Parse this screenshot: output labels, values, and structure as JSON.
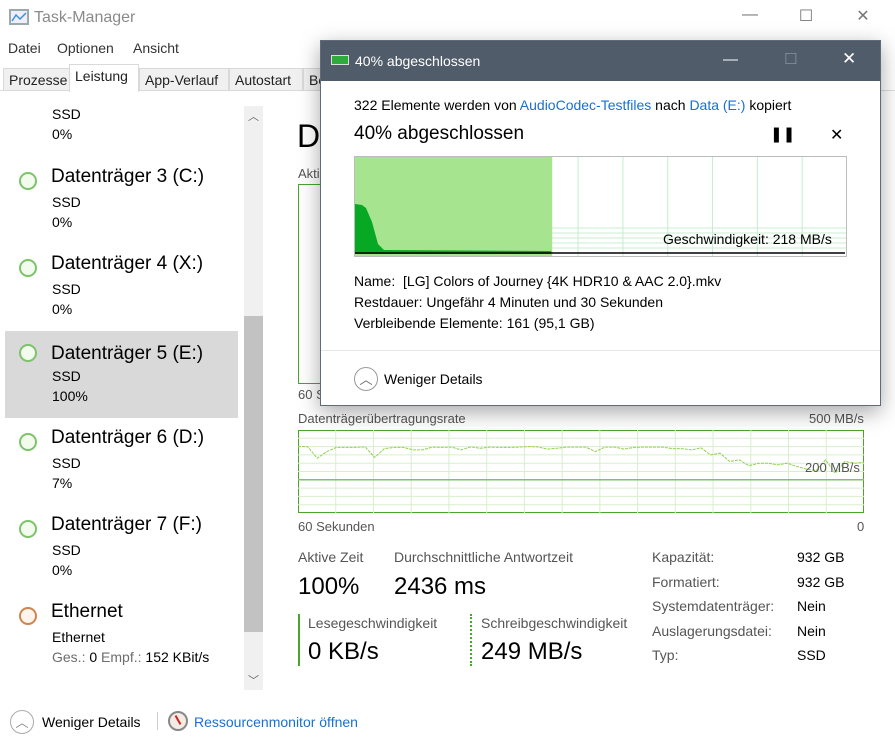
{
  "window": {
    "title": "Task-Manager",
    "app_icon": "task-manager-icon",
    "controls": [
      "minimize",
      "maximize",
      "close"
    ]
  },
  "menu": [
    "Datei",
    "Optionen",
    "Ansicht"
  ],
  "tabs": [
    {
      "label": "Prozesse"
    },
    {
      "label": "Leistung",
      "active": true
    },
    {
      "label": "App-Verlauf"
    },
    {
      "label": "Autostart"
    },
    {
      "label": "Be"
    }
  ],
  "sidebar": {
    "partial_top": {
      "sub": "SSD",
      "value": "0%"
    },
    "items": [
      {
        "title": "Datenträger 3 (C:)",
        "sub": "SSD",
        "value": "0%"
      },
      {
        "title": "Datenträger 4 (X:)",
        "sub": "SSD",
        "value": "0%"
      },
      {
        "title": "Datenträger 5 (E:)",
        "sub": "SSD",
        "value": "100%",
        "selected": true
      },
      {
        "title": "Datenträger 6 (D:)",
        "sub": "SSD",
        "value": "7%"
      },
      {
        "title": "Datenträger 7 (F:)",
        "sub": "SSD",
        "value": "0%"
      }
    ],
    "ethernet": {
      "title": "Ethernet",
      "sub": "Ethernet",
      "send_label": "Ges.:",
      "send": "0",
      "recv_label": "Empf.:",
      "recv": "152 KBit/s"
    }
  },
  "main": {
    "heading_partial": "D",
    "graph1_label_partial": "Akti",
    "graph1_axis_partial": "60 S",
    "transfer": {
      "label": "Datenträgerübertragungsrate",
      "max": "500 MB/s",
      "ref_label": "200 MB/s",
      "x_left": "60 Sekunden",
      "x_right": "0",
      "max_value": 500,
      "ref_value": 200,
      "values": [
        400,
        400,
        330,
        370,
        395,
        395,
        395,
        398,
        335,
        388,
        395,
        395,
        380,
        380,
        397,
        395,
        397,
        380,
        398,
        390,
        397,
        395,
        395,
        397,
        400,
        398,
        385,
        390,
        397,
        397,
        397,
        370,
        397,
        397,
        385,
        395,
        397,
        397,
        397,
        388,
        388,
        380,
        392,
        350,
        360,
        310,
        320,
        285,
        300,
        300,
        290,
        300,
        280,
        265,
        255,
        320,
        240,
        310,
        300,
        305
      ]
    },
    "stats": {
      "active_label": "Aktive Zeit",
      "active": "100%",
      "resp_label": "Durchschnittliche Antwortzeit",
      "resp": "2436 ms",
      "read_label": "Lesegeschwindigkeit",
      "read": "0 KB/s",
      "write_label": "Schreibgeschwindigkeit",
      "write": "249 MB/s"
    },
    "props": [
      {
        "k": "Kapazität:",
        "v": "932 GB"
      },
      {
        "k": "Formatiert:",
        "v": "932 GB"
      },
      {
        "k": "Systemdatenträger:",
        "v": "Nein"
      },
      {
        "k": "Auslagerungsdatei:",
        "v": "Nein"
      },
      {
        "k": "Typ:",
        "v": "SSD"
      }
    ]
  },
  "footer": {
    "less_details": "Weniger Details",
    "resmon": "Ressourcenmonitor öffnen"
  },
  "dialog": {
    "title": "40% abgeschlossen",
    "line_pre": "322 Elemente werden von ",
    "source": "AudioCodec-Testfiles",
    "line_mid": " nach ",
    "dest": "Data (E:)",
    "line_post": " kopiert",
    "progress_title": "40% abgeschlossen",
    "progress": 40,
    "speed": "Geschwindigkeit: 218 MB/s",
    "name_label": "Name:",
    "name": "[LG] Colors of Journey {4K HDR10 & AAC 2.0}.mkv",
    "rest_label": "Restdauer:",
    "rest": "Ungefähr 4 Minuten und 30 Sekunden",
    "items_label": "Verbleibende Elemente:",
    "items": "161 (95,1 GB)",
    "less_details": "Weniger Details",
    "accent": "#1a6fd1",
    "fill": "#a6e490",
    "speed_fill": "#06a824"
  }
}
